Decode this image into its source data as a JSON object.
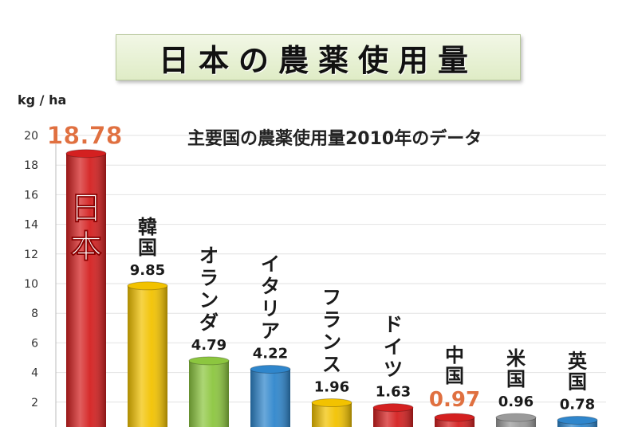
{
  "title": "日本の農薬使用量",
  "chart_data": {
    "type": "bar",
    "subtitle": "主要国の農薬使用量2010年のデータ",
    "ylabel": "kg / ha",
    "ylim": [
      0,
      20
    ],
    "yticks": [
      "2",
      "4",
      "6",
      "8",
      "10",
      "12",
      "14",
      "16",
      "18",
      "20"
    ],
    "grid": true,
    "categories": [
      "日本",
      "韓国",
      "オランダ",
      "イタリア",
      "フランス",
      "ドイツ",
      "中国",
      "米国",
      "英国"
    ],
    "values": [
      18.78,
      9.85,
      4.79,
      4.22,
      1.96,
      1.63,
      0.97,
      0.96,
      0.78
    ],
    "value_labels": [
      "18.78",
      "9.85",
      "4.79",
      "4.22",
      "1.96",
      "1.63",
      "0.97",
      "0.96",
      "0.78"
    ],
    "colors": [
      "#d42020",
      "#f2c200",
      "#8cc63f",
      "#2f86cc",
      "#f2c200",
      "#d42020",
      "#d42020",
      "#9a9a9a",
      "#2f86cc"
    ],
    "highlight_label_color": "#e07040"
  }
}
